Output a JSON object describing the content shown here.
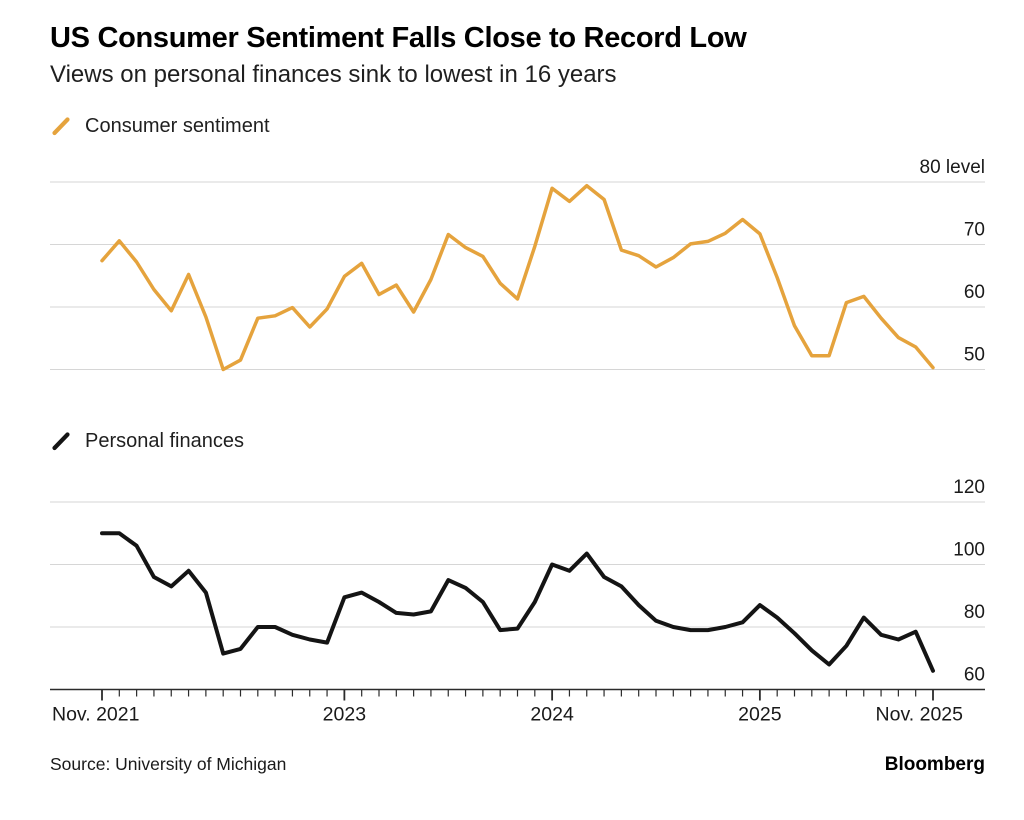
{
  "header": {
    "title": "US Consumer Sentiment Falls Close to Record Low",
    "subtitle": "Views on personal finances sink to lowest in 16 years"
  },
  "footer": {
    "source": "Source: University of Michigan",
    "brand": "Bloomberg"
  },
  "colors": {
    "sentiment_line": "#E5A33D",
    "finances_line": "#141414",
    "gridline": "#d6d6d6",
    "axis": "#2b2b2b",
    "text": "#1a1a1a"
  },
  "chart_data": {
    "type": "line",
    "frequency": "monthly",
    "x_start": "Nov 2021",
    "x_end": "Nov 2025",
    "x_axis_ticks": [
      {
        "month_index": 0,
        "label": "Nov. 2021"
      },
      {
        "month_index": 14,
        "label": "2023"
      },
      {
        "month_index": 26,
        "label": "2024"
      },
      {
        "month_index": 38,
        "label": "2025"
      },
      {
        "month_index": 48,
        "label": "Nov. 2025"
      }
    ],
    "panels": [
      {
        "name": "Consumer sentiment",
        "color": "#E5A33D",
        "ylim": [
          46,
          84
        ],
        "grid": true,
        "legend_position": "top-left",
        "y_ticks": [
          {
            "value": 80,
            "label": "80 level"
          },
          {
            "value": 70,
            "label": "70"
          },
          {
            "value": 60,
            "label": "60"
          },
          {
            "value": 50,
            "label": "50"
          }
        ],
        "values": [
          67.4,
          70.6,
          67.2,
          62.8,
          59.4,
          65.2,
          58.4,
          50.0,
          51.5,
          58.2,
          58.6,
          59.9,
          56.8,
          59.7,
          64.9,
          67.0,
          62.0,
          63.5,
          59.2,
          64.4,
          71.6,
          69.5,
          68.1,
          63.8,
          61.3,
          69.7,
          79.0,
          76.9,
          79.4,
          77.2,
          69.1,
          68.2,
          66.4,
          67.9,
          70.1,
          70.5,
          71.8,
          74.0,
          71.7,
          64.7,
          57.0,
          52.2,
          52.2,
          60.7,
          61.7,
          58.2,
          55.1,
          53.6,
          50.3
        ]
      },
      {
        "name": "Personal finances",
        "color": "#141414",
        "ylim": [
          56,
          126
        ],
        "grid": true,
        "baseline_value": 60,
        "legend_position": "top-left",
        "y_ticks": [
          {
            "value": 120,
            "label": "120"
          },
          {
            "value": 100,
            "label": "100"
          },
          {
            "value": 80,
            "label": "80"
          },
          {
            "value": 60,
            "label": "60"
          }
        ],
        "values": [
          110,
          110,
          106,
          96,
          93,
          98,
          91,
          71.5,
          73,
          80,
          80,
          77.5,
          76,
          75,
          89.5,
          91,
          88,
          84.5,
          84,
          85,
          95,
          92.5,
          88,
          79,
          79.5,
          88,
          100,
          98,
          103.5,
          96,
          93,
          87,
          82,
          80,
          79,
          79,
          80,
          81.5,
          87,
          83,
          78,
          72.5,
          68,
          74,
          83,
          77.5,
          76,
          78.5,
          66
        ]
      }
    ]
  }
}
